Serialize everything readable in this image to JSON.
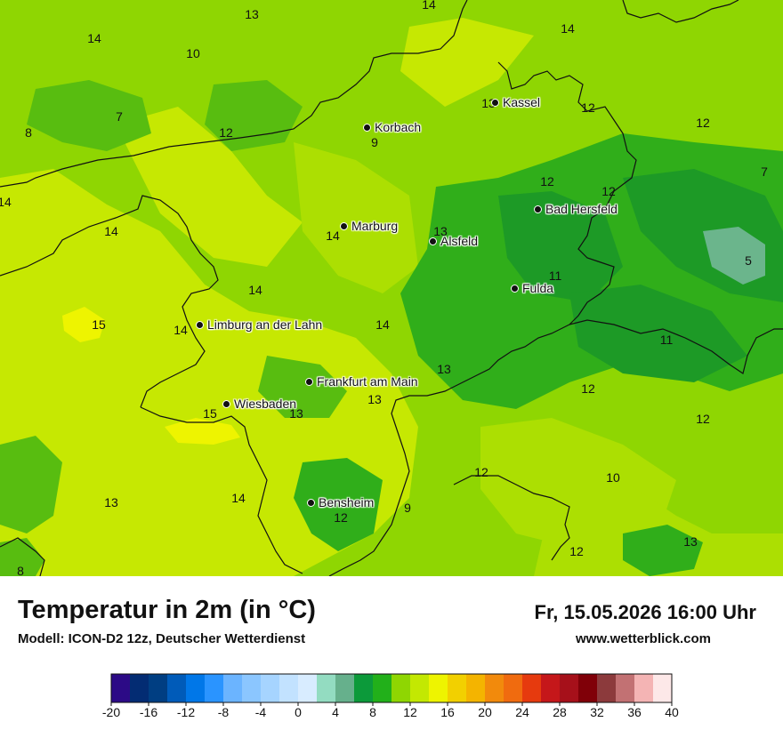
{
  "map": {
    "colors": {
      "c8": "#1d9a26",
      "c9": "#30ae1a",
      "c10": "#58bd10",
      "c11": "#7ccb0a",
      "c12": "#8fd602",
      "c13": "#acdf02",
      "c14": "#c6e802",
      "c15": "#eef400",
      "c5": "#6bb58c",
      "border": "#111111"
    },
    "cities": [
      {
        "name": "Korbach"
      },
      {
        "name": "Kassel"
      },
      {
        "name": "Marburg"
      },
      {
        "name": "Alsfeld"
      },
      {
        "name": "Bad Hersfeld"
      },
      {
        "name": "Fulda"
      },
      {
        "name": "Limburg an der Lahn"
      },
      {
        "name": "Frankfurt am Main"
      },
      {
        "name": "Wiesbaden"
      },
      {
        "name": "Bensheim"
      }
    ],
    "values": [
      "13",
      "14",
      "14",
      "10",
      "7",
      "8",
      "12",
      "14",
      "13",
      "12",
      "9",
      "12",
      "7",
      "12",
      "14",
      "14",
      "14",
      "13",
      "14",
      "12",
      "15",
      "14",
      "14",
      "11",
      "5",
      "13",
      "11",
      "12",
      "15",
      "13",
      "13",
      "12",
      "12",
      "12",
      "10",
      "14",
      "9",
      "12",
      "13",
      "13",
      "12",
      "8"
    ]
  },
  "footer": {
    "title": "Temperatur in 2m (in °C)",
    "subtitle": "Modell: ICON-D2 12z, Deutscher Wetterdienst",
    "datetime": "Fr, 15.05.2026 16:00 Uhr",
    "website": "www.wetterblick.com"
  },
  "legend": {
    "ticks": [
      "-20",
      "-16",
      "-12",
      "-8",
      "-4",
      "0",
      "4",
      "8",
      "12",
      "16",
      "20",
      "24",
      "28",
      "32",
      "36",
      "40"
    ],
    "colors": [
      "#2c0a86",
      "#032c73",
      "#003e82",
      "#005bb9",
      "#0077e8",
      "#2a94ff",
      "#6bb4ff",
      "#8bc6ff",
      "#a6d4ff",
      "#c2e2ff",
      "#d8ecff",
      "#93dcc1",
      "#66b08c",
      "#0c9a3a",
      "#22b01a",
      "#8fd602",
      "#c3e802",
      "#eef400",
      "#f2d000",
      "#f4b400",
      "#f28a0c",
      "#f06b0f",
      "#e63a0e",
      "#c5171a",
      "#a6101a",
      "#800008",
      "#8c3a3c",
      "#c27173",
      "#f4b4b4",
      "#fde8e8"
    ]
  }
}
